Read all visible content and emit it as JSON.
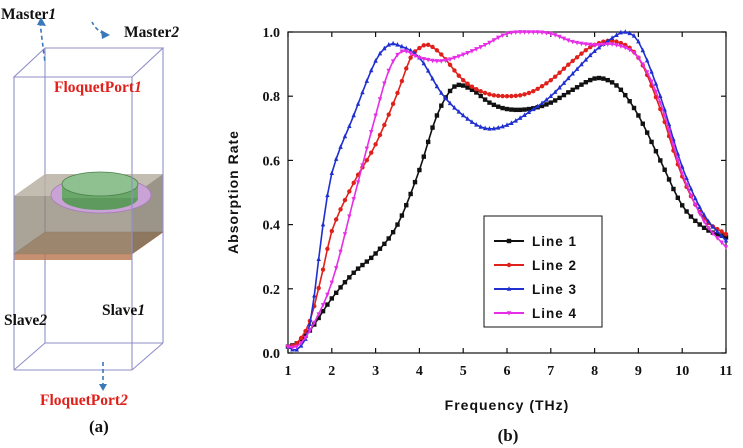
{
  "panel_a": {
    "caption": "(a)",
    "master1": "Master",
    "master1_num": "1",
    "master2": "Master",
    "master2_num": "2",
    "port1": "FloquetPort",
    "port1_num": "1",
    "slave2": "Slave",
    "slave2_num": "2",
    "slave1": "Slave",
    "slave1_num": "1",
    "port2": "FloquetPort",
    "port2_num": "2",
    "colors": {
      "frame": "#8f8fc8",
      "label_red": "#e0201b",
      "arrow": "#3a78b8",
      "copper": "#c8865a",
      "substrate": "#9a9282",
      "ring": "#c9a2d6",
      "disk": "#7fb27f"
    }
  },
  "chart_data": {
    "type": "line",
    "caption": "(b)",
    "xlabel": "Frequency (THz)",
    "ylabel": "Absorption Rate",
    "xlim": [
      1,
      11
    ],
    "ylim": [
      0.0,
      1.0
    ],
    "xticks": [
      1,
      2,
      3,
      4,
      5,
      6,
      7,
      8,
      9,
      10,
      11
    ],
    "xtick_labels": [
      "1",
      "2",
      "3",
      "4",
      "5",
      "6",
      "7",
      "8",
      "9",
      "10",
      "11"
    ],
    "yticks": [
      0.0,
      0.2,
      0.4,
      0.6,
      0.8,
      1.0
    ],
    "ytick_labels": [
      "0.0",
      "0.2",
      "0.4",
      "0.6",
      "0.8",
      "1.0"
    ],
    "legend_position": "lower-center",
    "series": [
      {
        "name": "Line 1",
        "color": "#111111",
        "marker": "square",
        "x": [
          1.0,
          1.2,
          1.5,
          2.0,
          2.5,
          3.0,
          3.5,
          4.0,
          4.4,
          4.8,
          5.2,
          5.6,
          6.0,
          6.5,
          7.0,
          7.5,
          8.0,
          8.3,
          8.6,
          9.0,
          9.5,
          10.0,
          10.5,
          11.0
        ],
        "y": [
          0.02,
          0.03,
          0.07,
          0.17,
          0.25,
          0.31,
          0.4,
          0.57,
          0.74,
          0.83,
          0.82,
          0.78,
          0.76,
          0.76,
          0.78,
          0.82,
          0.855,
          0.85,
          0.82,
          0.74,
          0.6,
          0.46,
          0.39,
          0.36
        ]
      },
      {
        "name": "Line 2",
        "color": "#e0201b",
        "marker": "circle",
        "x": [
          1.0,
          1.2,
          1.5,
          1.8,
          2.0,
          2.5,
          3.0,
          3.5,
          3.8,
          4.0,
          4.2,
          4.5,
          5.0,
          5.5,
          6.0,
          6.5,
          7.0,
          7.5,
          8.0,
          8.5,
          9.0,
          9.5,
          10.0,
          10.5,
          11.0
        ],
        "y": [
          0.02,
          0.03,
          0.1,
          0.26,
          0.38,
          0.53,
          0.65,
          0.81,
          0.92,
          0.95,
          0.96,
          0.93,
          0.85,
          0.81,
          0.8,
          0.81,
          0.85,
          0.91,
          0.96,
          0.97,
          0.92,
          0.76,
          0.55,
          0.42,
          0.37
        ]
      },
      {
        "name": "Line 3",
        "color": "#1f2fd0",
        "marker": "triangle-up",
        "x": [
          1.0,
          1.2,
          1.5,
          1.8,
          2.0,
          2.5,
          3.0,
          3.3,
          3.5,
          4.0,
          4.5,
          5.0,
          5.5,
          6.0,
          6.5,
          7.0,
          7.5,
          8.0,
          8.5,
          8.7,
          9.0,
          9.5,
          10.0,
          10.5,
          11.0
        ],
        "y": [
          0.02,
          0.01,
          0.09,
          0.4,
          0.56,
          0.74,
          0.91,
          0.96,
          0.96,
          0.92,
          0.81,
          0.74,
          0.7,
          0.71,
          0.75,
          0.8,
          0.87,
          0.94,
          0.99,
          1.0,
          0.97,
          0.8,
          0.58,
          0.43,
          0.35
        ]
      },
      {
        "name": "Line 4",
        "color": "#e62ee6",
        "marker": "triangle-down",
        "x": [
          1.0,
          1.2,
          1.5,
          2.0,
          2.5,
          3.0,
          3.3,
          3.6,
          4.0,
          4.5,
          5.0,
          5.5,
          6.0,
          6.5,
          7.0,
          7.5,
          8.0,
          8.5,
          9.0,
          9.5,
          10.0,
          10.5,
          11.0
        ],
        "y": [
          0.02,
          0.02,
          0.07,
          0.22,
          0.48,
          0.74,
          0.88,
          0.94,
          0.92,
          0.91,
          0.93,
          0.96,
          0.995,
          1.0,
          0.995,
          0.97,
          0.96,
          0.96,
          0.92,
          0.78,
          0.56,
          0.41,
          0.33
        ]
      }
    ]
  }
}
